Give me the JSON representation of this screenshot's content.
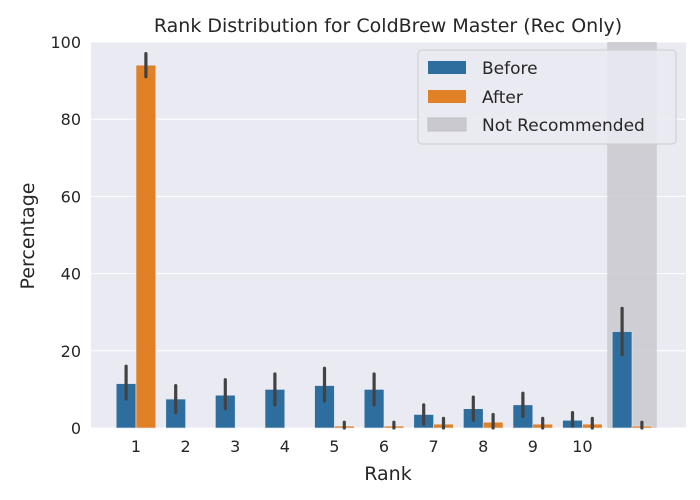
{
  "chart_data": {
    "type": "bar",
    "title": "Rank Distribution for ColdBrew Master (Rec Only)",
    "xlabel": "Rank",
    "ylabel": "Percentage",
    "ylim": [
      0,
      100
    ],
    "yticks": [
      "0",
      "20",
      "40",
      "60",
      "80",
      "100"
    ],
    "categories": [
      "1",
      "2",
      "3",
      "4",
      "5",
      "6",
      "7",
      "8",
      "9",
      "10",
      ""
    ],
    "series": [
      {
        "name": "Before",
        "color": "#2e6e9e",
        "values": [
          11.5,
          7.5,
          8.5,
          10,
          11,
          10,
          3.5,
          5,
          6,
          2,
          25
        ],
        "err_low": [
          7.5,
          4,
          5,
          6,
          7,
          6,
          1,
          2,
          3,
          0.5,
          19
        ],
        "err_high": [
          16,
          11,
          12.5,
          14,
          15.5,
          14,
          6,
          8,
          9,
          4,
          31
        ]
      },
      {
        "name": "After",
        "color": "#e08128",
        "values": [
          94,
          0,
          0,
          0,
          0.5,
          0.5,
          1,
          1.5,
          1,
          1,
          0.5
        ],
        "err_low": [
          91,
          0,
          0,
          0,
          0,
          0,
          0,
          0,
          0,
          0,
          0
        ],
        "err_high": [
          97,
          0,
          0,
          0,
          1.5,
          1.5,
          2.5,
          3.5,
          2.5,
          2.5,
          1.5
        ]
      }
    ],
    "shaded_region": {
      "name": "Not Recommended",
      "category_index": 10,
      "color": "#c9c9cf"
    },
    "legend": {
      "position": "top-right",
      "entries": [
        "Before",
        "After",
        "Not Recommended"
      ]
    },
    "grid": true,
    "background_color": "#eaeaf2",
    "errorbar_color": "#424242"
  }
}
